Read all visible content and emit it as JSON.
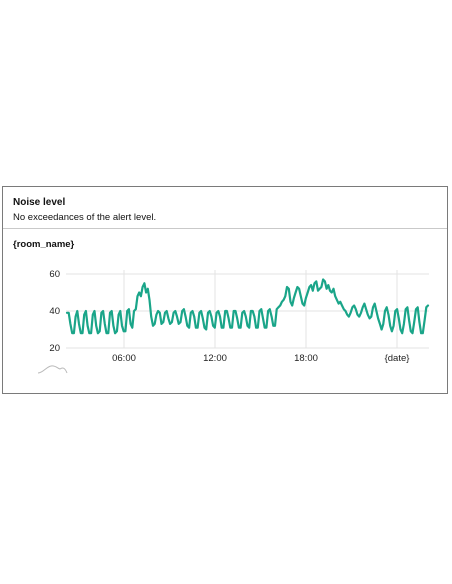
{
  "panel": {
    "title": "Noise level",
    "subtitle": "No exceedances of the alert level.",
    "room_name": "{room_name}"
  },
  "chart_data": {
    "type": "line",
    "series": [
      {
        "color": "#1aa589",
        "values": [
          39,
          39,
          33,
          28,
          28,
          37,
          40,
          33,
          28,
          28,
          38,
          40,
          32,
          28,
          28,
          38,
          40,
          32,
          28,
          29,
          39,
          40,
          33,
          28,
          28,
          39,
          40,
          32,
          28,
          29,
          38,
          40,
          32,
          29,
          29,
          40,
          41,
          33,
          31,
          40,
          41,
          48,
          50,
          48,
          53,
          55,
          50,
          52,
          46,
          37,
          32,
          33,
          38,
          40,
          39,
          33,
          34,
          39,
          40,
          36,
          33,
          34,
          39,
          40,
          37,
          33,
          34,
          40,
          41,
          37,
          32,
          31,
          39,
          40,
          37,
          31,
          31,
          39,
          40,
          36,
          31,
          30,
          39,
          40,
          37,
          32,
          31,
          39,
          40,
          37,
          31,
          31,
          40,
          40,
          36,
          31,
          31,
          40,
          40,
          36,
          31,
          31,
          39,
          40,
          37,
          32,
          31,
          40,
          40,
          37,
          31,
          31,
          40,
          41,
          36,
          31,
          31,
          40,
          41,
          37,
          32,
          32,
          41,
          42,
          43,
          45,
          46,
          48,
          53,
          52,
          45,
          43,
          47,
          50,
          53,
          52,
          48,
          44,
          43,
          47,
          50,
          53,
          54,
          51,
          55,
          56,
          51,
          52,
          53,
          57,
          56,
          52,
          54,
          51,
          50,
          52,
          48,
          46,
          44,
          45,
          43,
          41,
          40,
          38,
          37,
          39,
          42,
          43,
          41,
          38,
          37,
          39,
          42,
          44,
          41,
          38,
          36,
          37,
          42,
          44,
          40,
          36,
          33,
          30,
          33,
          40,
          42,
          38,
          32,
          29,
          32,
          40,
          41,
          36,
          30,
          28,
          33,
          41,
          42,
          35,
          29,
          28,
          34,
          41,
          42,
          34,
          28,
          28,
          35,
          42,
          43
        ]
      }
    ],
    "x_axis": {
      "ticks": [
        "06:00",
        "12:00",
        "18:00",
        "{date}"
      ]
    },
    "y_axis": {
      "ticks": [
        "60",
        "40",
        "20"
      ],
      "range": [
        20,
        60
      ]
    },
    "grid": true
  }
}
